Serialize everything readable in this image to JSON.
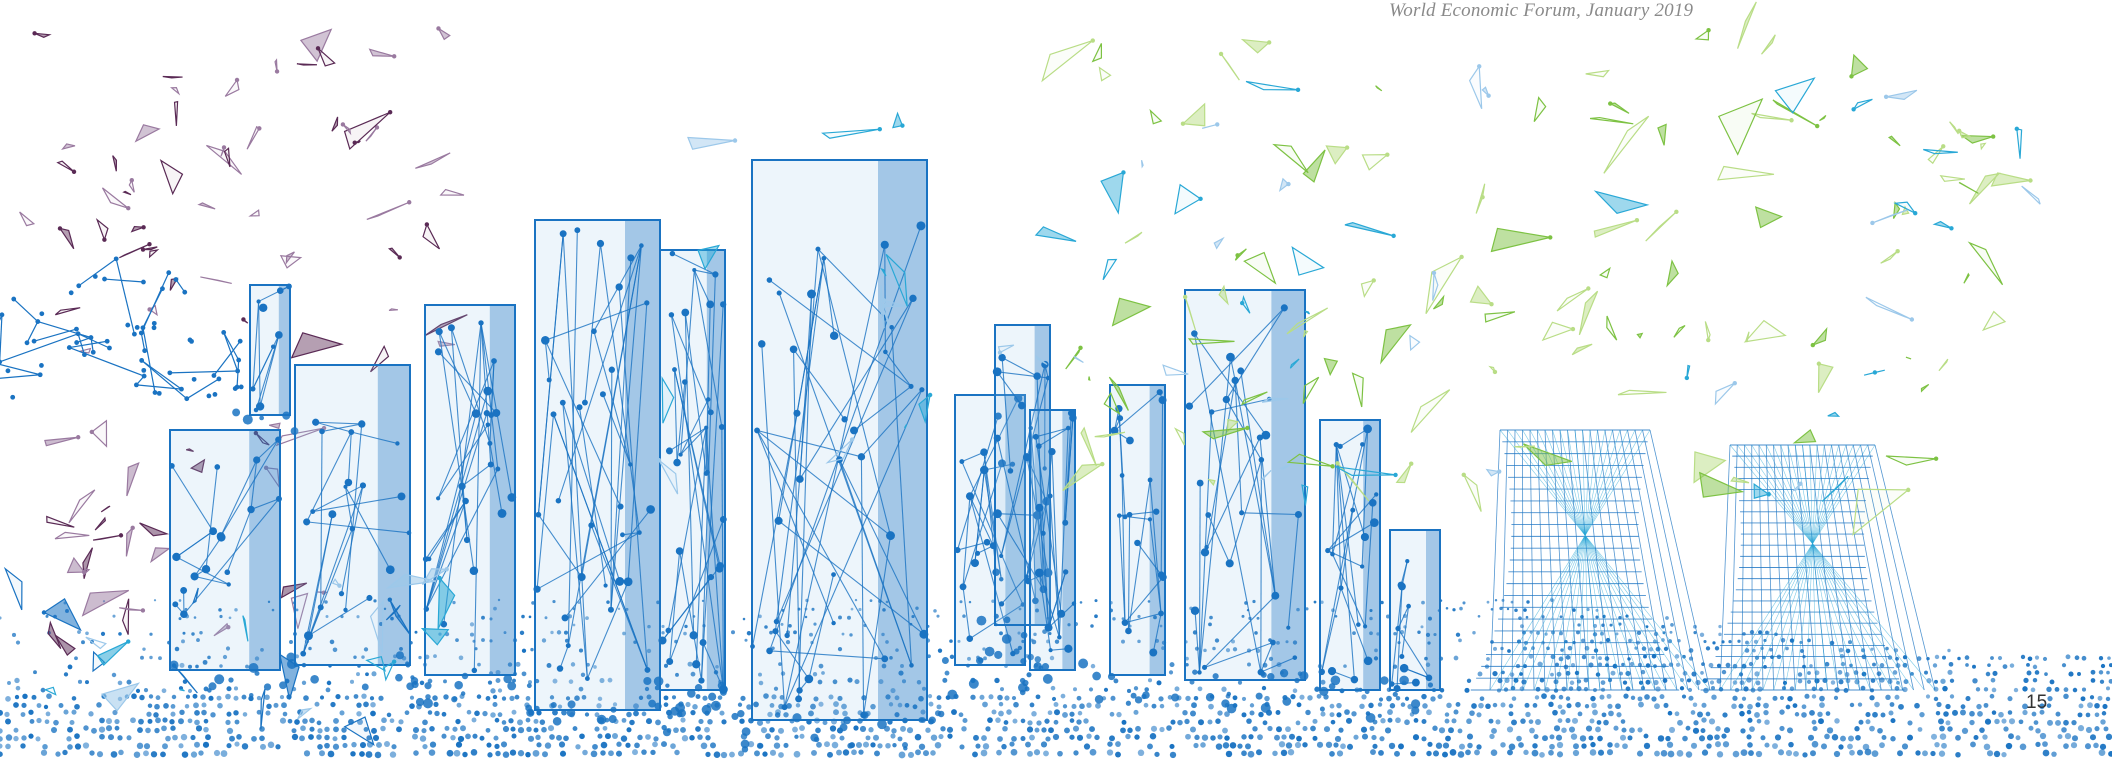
{
  "header": {
    "running_title": "World Economic Forum, January 2019"
  },
  "footer": {
    "page_number": "15"
  },
  "colors": {
    "blue": "#1a73c2",
    "light_blue": "#9cc8ea",
    "cyan": "#29a8d6",
    "green": "#7dc243",
    "light_green": "#b9dd86",
    "purple": "#5a2a55",
    "light_purple": "#9a7aa0",
    "text_gray": "#8a8a8a",
    "text_dark": "#333333"
  },
  "illustration": {
    "description_icon": "network-city-skyline-icon"
  }
}
